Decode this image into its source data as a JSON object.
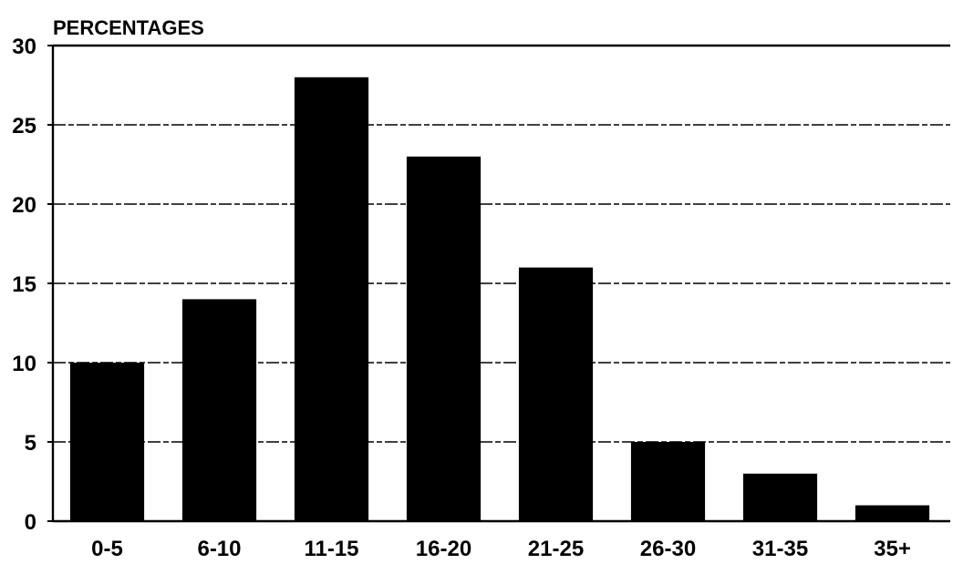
{
  "chart_data": {
    "type": "bar",
    "title": "",
    "xlabel": "",
    "ylabel": "PERCENTAGES",
    "categories": [
      "0-5",
      "6-10",
      "11-15",
      "16-20",
      "21-25",
      "26-30",
      "31-35",
      "35+"
    ],
    "values": [
      10,
      14,
      28,
      23,
      16,
      5,
      3,
      1
    ],
    "ylim": [
      0,
      30
    ],
    "yticks": [
      0,
      5,
      10,
      15,
      20,
      25,
      30
    ],
    "grid": true,
    "grid_style": "dashed",
    "legend": "none",
    "bar_color": "#000000",
    "axis_color": "#000000"
  }
}
